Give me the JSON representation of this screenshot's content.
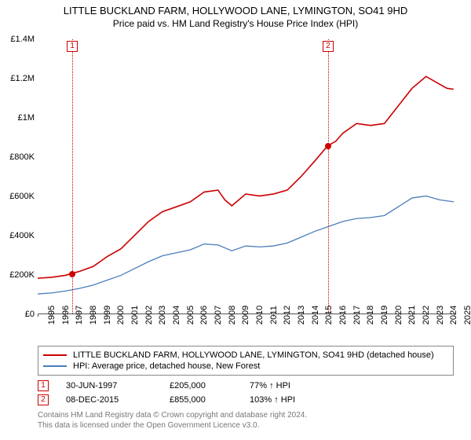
{
  "title": "LITTLE BUCKLAND FARM, HOLLYWOOD LANE, LYMINGTON, SO41 9HD",
  "subtitle": "Price paid vs. HM Land Registry's House Price Index (HPI)",
  "chart": {
    "type": "line",
    "x_start_year": 1995,
    "x_end_year": 2025,
    "y_min": 0,
    "y_max": 1400000,
    "y_ticks": [
      "£0",
      "£200K",
      "£400K",
      "£600K",
      "£800K",
      "£1M",
      "£1.2M",
      "£1.4M"
    ],
    "x_ticks": [
      "1995",
      "1996",
      "1997",
      "1998",
      "1999",
      "2000",
      "2001",
      "2002",
      "2003",
      "2004",
      "2005",
      "2006",
      "2007",
      "2008",
      "2009",
      "2010",
      "2011",
      "2012",
      "2013",
      "2014",
      "2015",
      "2016",
      "2017",
      "2018",
      "2019",
      "2020",
      "2021",
      "2022",
      "2023",
      "2024",
      "2025"
    ],
    "grid_color": "#555555",
    "background_color": "#ffffff",
    "series": [
      {
        "name": "property",
        "color": "#cc0000",
        "width": 1.6,
        "label": "LITTLE BUCKLAND FARM, HOLLYWOOD LANE, LYMINGTON, SO41 9HD (detached house)",
        "data": [
          [
            1995.0,
            180000
          ],
          [
            1996.0,
            185000
          ],
          [
            1997.0,
            195000
          ],
          [
            1997.5,
            205000
          ],
          [
            1998.0,
            215000
          ],
          [
            1999.0,
            240000
          ],
          [
            2000.0,
            290000
          ],
          [
            2001.0,
            330000
          ],
          [
            2002.0,
            400000
          ],
          [
            2003.0,
            470000
          ],
          [
            2004.0,
            520000
          ],
          [
            2005.0,
            545000
          ],
          [
            2006.0,
            570000
          ],
          [
            2007.0,
            620000
          ],
          [
            2008.0,
            630000
          ],
          [
            2008.5,
            580000
          ],
          [
            2009.0,
            550000
          ],
          [
            2010.0,
            610000
          ],
          [
            2011.0,
            600000
          ],
          [
            2012.0,
            610000
          ],
          [
            2013.0,
            630000
          ],
          [
            2014.0,
            700000
          ],
          [
            2015.0,
            780000
          ],
          [
            2015.9,
            855000
          ],
          [
            2016.5,
            880000
          ],
          [
            2017.0,
            920000
          ],
          [
            2018.0,
            970000
          ],
          [
            2019.0,
            960000
          ],
          [
            2020.0,
            970000
          ],
          [
            2021.0,
            1060000
          ],
          [
            2022.0,
            1150000
          ],
          [
            2023.0,
            1210000
          ],
          [
            2024.0,
            1170000
          ],
          [
            2024.5,
            1150000
          ],
          [
            2025.0,
            1145000
          ]
        ]
      },
      {
        "name": "hpi",
        "color": "#4a7ebb",
        "width": 1.3,
        "label": "HPI: Average price, detached house, New Forest",
        "data": [
          [
            1995.0,
            100000
          ],
          [
            1996.0,
            105000
          ],
          [
            1997.0,
            115000
          ],
          [
            1998.0,
            128000
          ],
          [
            1999.0,
            145000
          ],
          [
            2000.0,
            170000
          ],
          [
            2001.0,
            195000
          ],
          [
            2002.0,
            230000
          ],
          [
            2003.0,
            265000
          ],
          [
            2004.0,
            295000
          ],
          [
            2005.0,
            310000
          ],
          [
            2006.0,
            325000
          ],
          [
            2007.0,
            355000
          ],
          [
            2008.0,
            350000
          ],
          [
            2009.0,
            320000
          ],
          [
            2010.0,
            345000
          ],
          [
            2011.0,
            340000
          ],
          [
            2012.0,
            345000
          ],
          [
            2013.0,
            360000
          ],
          [
            2014.0,
            390000
          ],
          [
            2015.0,
            420000
          ],
          [
            2016.0,
            445000
          ],
          [
            2017.0,
            470000
          ],
          [
            2018.0,
            485000
          ],
          [
            2019.0,
            490000
          ],
          [
            2020.0,
            500000
          ],
          [
            2021.0,
            545000
          ],
          [
            2022.0,
            590000
          ],
          [
            2023.0,
            600000
          ],
          [
            2024.0,
            580000
          ],
          [
            2025.0,
            570000
          ]
        ]
      }
    ],
    "sale_markers": [
      {
        "index": "1",
        "year": 1997.5,
        "value": 205000
      },
      {
        "index": "2",
        "year": 2015.94,
        "value": 855000
      }
    ]
  },
  "sales": [
    {
      "index": "1",
      "date": "30-JUN-1997",
      "price": "£205,000",
      "hpi": "77% ↑ HPI"
    },
    {
      "index": "2",
      "date": "08-DEC-2015",
      "price": "£855,000",
      "hpi": "103% ↑ HPI"
    }
  ],
  "footer_line1": "Contains HM Land Registry data © Crown copyright and database right 2024.",
  "footer_line2": "This data is licensed under the Open Government Licence v3.0."
}
